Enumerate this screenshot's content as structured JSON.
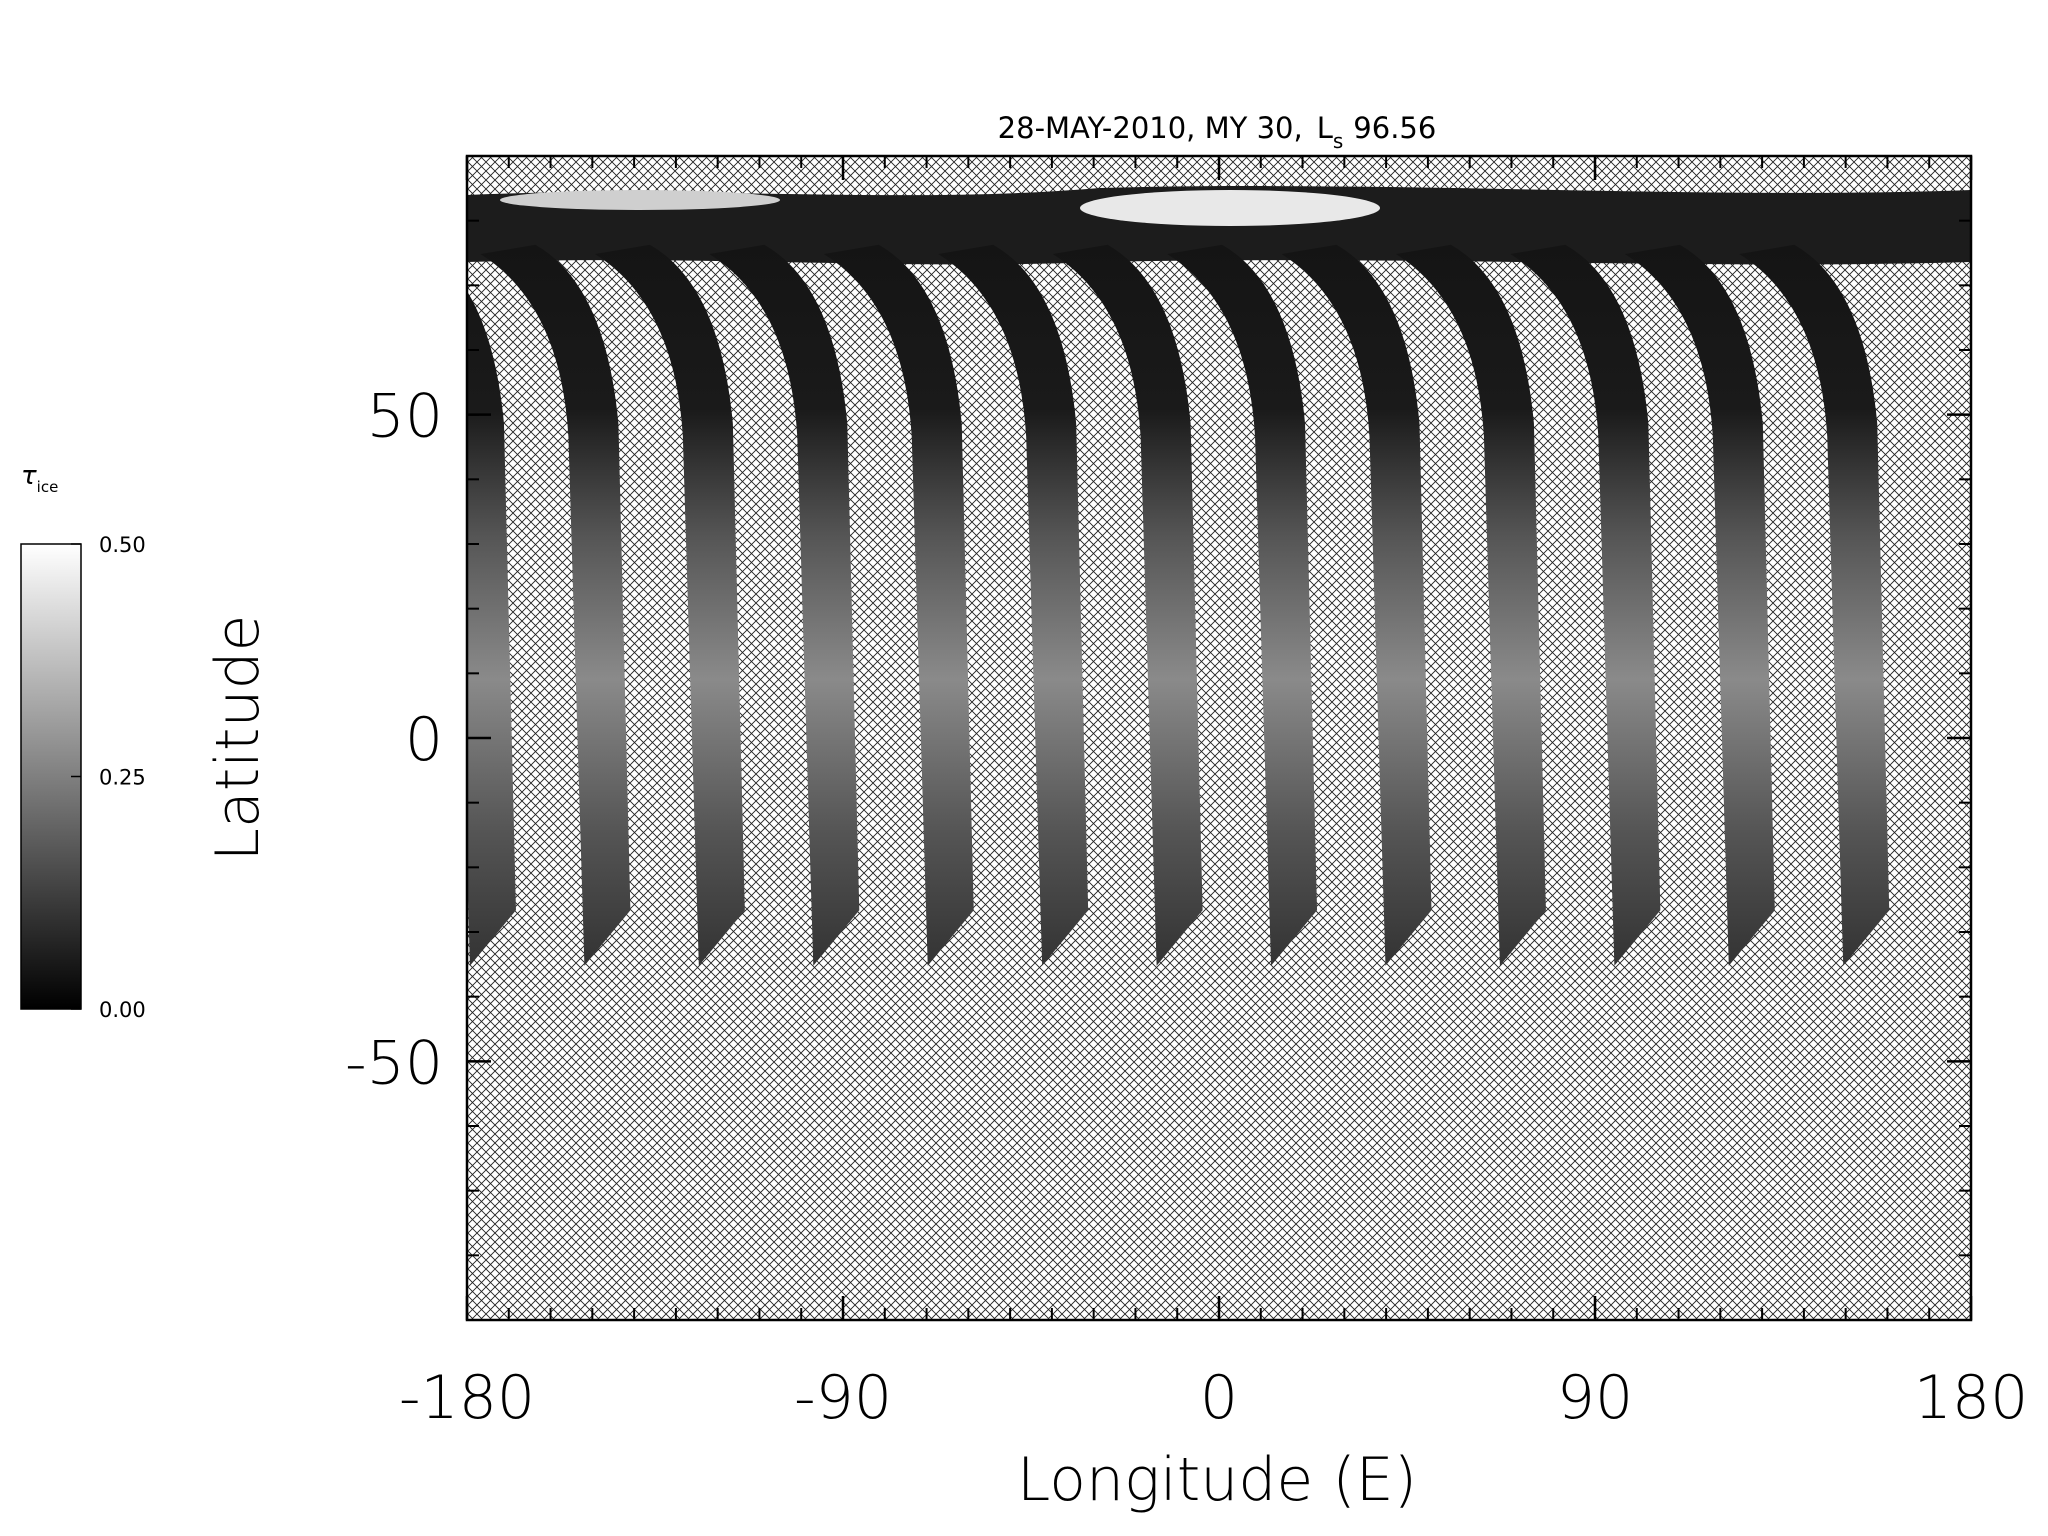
{
  "chart_data": {
    "type": "map",
    "title": "28-MAY-2010, MY 30,",
    "title_symbol": "L",
    "title_subscript": "s",
    "title_value": "96.56",
    "x_label": "Longitude (E)",
    "y_label": "Latitude",
    "xlim": [
      -180,
      180
    ],
    "xticks": [
      -180,
      -90,
      0,
      90,
      180
    ],
    "x_minor_step": 10,
    "ylim": [
      -90,
      90
    ],
    "yticks": [
      -50,
      0,
      50
    ],
    "y_minor_step": 10,
    "colorbar": {
      "label": "τ",
      "label_subscript": "ice",
      "lim": [
        0,
        0.5
      ],
      "ticks": [
        {
          "value": 0,
          "label": "0.00"
        },
        {
          "value": 0.25,
          "label": "0.25"
        },
        {
          "value": 0.5,
          "label": "0.50"
        }
      ]
    }
  }
}
